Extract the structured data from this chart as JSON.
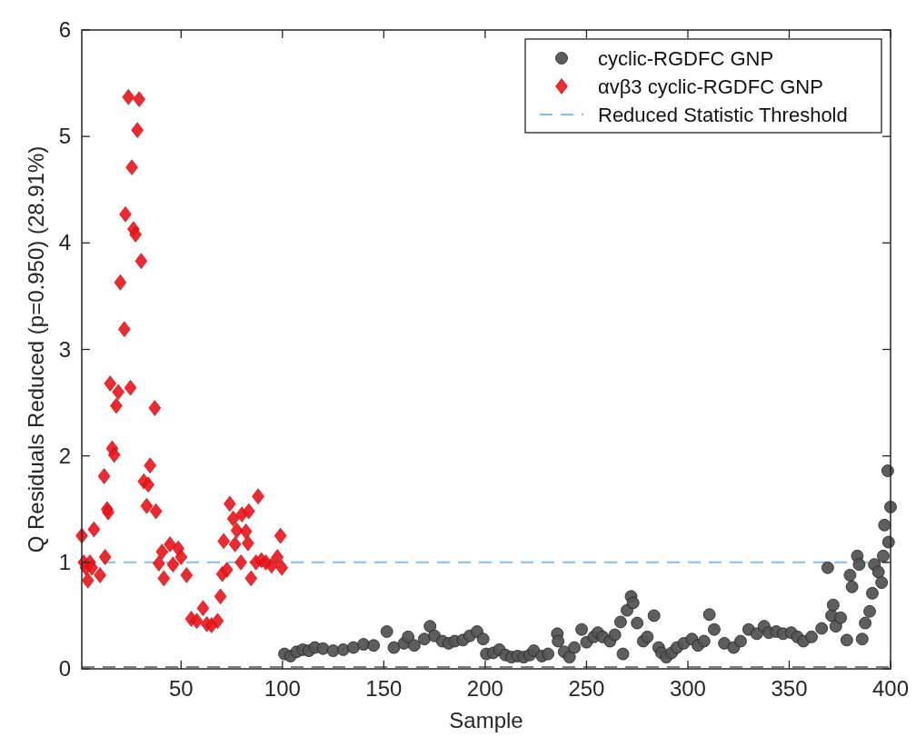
{
  "chart_data": {
    "type": "scatter",
    "xlabel": "Sample",
    "ylabel": "Q Residuals Reduced (p=0.950) (28.91%)",
    "xlim": [
      1,
      400
    ],
    "ylim": [
      0,
      6
    ],
    "xticks": [
      50,
      100,
      150,
      200,
      250,
      300,
      350,
      400
    ],
    "yticks": [
      0,
      1,
      2,
      3,
      4,
      5,
      6
    ],
    "grid": false,
    "legend": "top right",
    "series": [
      {
        "name": "cyclic-RGDFC GNP",
        "color": "#555555",
        "marker": "circle",
        "x": [
          101,
          104,
          107,
          110,
          113,
          116,
          120,
          125,
          130,
          135,
          140,
          145,
          151.5,
          155,
          160,
          162,
          165,
          170,
          172.8,
          175,
          178.9,
          182,
          185,
          189,
          192.4,
          196,
          199,
          200.6,
          204,
          207,
          210,
          213,
          216,
          219,
          222,
          224,
          228,
          231,
          235.6,
          236,
          239,
          241.6,
          244,
          247.6,
          250,
          253.6,
          255.6,
          258,
          261.6,
          264,
          266.8,
          268,
          270,
          272,
          273,
          275,
          278,
          280,
          283.3,
          285.6,
          287,
          289.4,
          292,
          294.6,
          298,
          302,
          305,
          308,
          310.6,
          313,
          318,
          322.6,
          326,
          330,
          334,
          337.6,
          340,
          343.6,
          347,
          351,
          354,
          357,
          361,
          366,
          369,
          370.9,
          371.7,
          373,
          375.4,
          378.4,
          380,
          381,
          383.6,
          384.5,
          386,
          387.5,
          389.7,
          391,
          392,
          394,
          395.6,
          396.4,
          397,
          398.6,
          399,
          400
        ],
        "values": [
          0.14,
          0.12,
          0.16,
          0.18,
          0.17,
          0.2,
          0.19,
          0.17,
          0.18,
          0.2,
          0.23,
          0.22,
          0.35,
          0.2,
          0.24,
          0.3,
          0.22,
          0.28,
          0.4,
          0.31,
          0.26,
          0.24,
          0.26,
          0.27,
          0.31,
          0.35,
          0.28,
          0.14,
          0.15,
          0.18,
          0.13,
          0.11,
          0.12,
          0.11,
          0.13,
          0.17,
          0.12,
          0.14,
          0.33,
          0.26,
          0.16,
          0.11,
          0.2,
          0.37,
          0.25,
          0.3,
          0.34,
          0.3,
          0.26,
          0.32,
          0.44,
          0.14,
          0.55,
          0.68,
          0.62,
          0.43,
          0.26,
          0.3,
          0.5,
          0.2,
          0.15,
          0.11,
          0.15,
          0.2,
          0.24,
          0.28,
          0.22,
          0.26,
          0.51,
          0.37,
          0.24,
          0.2,
          0.26,
          0.37,
          0.33,
          0.4,
          0.34,
          0.35,
          0.33,
          0.34,
          0.3,
          0.26,
          0.3,
          0.38,
          0.95,
          0.5,
          0.6,
          0.4,
          0.48,
          0.27,
          0.88,
          0.77,
          1.06,
          0.98,
          0.28,
          0.43,
          0.54,
          0.71,
          0.98,
          0.91,
          0.81,
          1.06,
          1.35,
          1.86,
          1.19,
          1.52
        ]
      },
      {
        "name": "αvβ3 cyclic-RGDFC GNP",
        "color": "#e8141c",
        "marker": "diamond",
        "x": [
          1,
          2,
          3,
          4,
          5,
          6,
          7,
          10,
          12,
          12.5,
          13.5,
          14,
          15,
          16,
          17,
          18,
          19,
          20,
          22,
          22.5,
          24,
          25,
          25.7,
          26.5,
          27.5,
          28.4,
          29.3,
          30.3,
          31.6,
          33,
          33.8,
          34.7,
          37,
          37.6,
          39,
          40.6,
          41.5,
          44.5,
          46,
          48.6,
          50,
          52.7,
          55,
          57.7,
          60.8,
          62.7,
          65,
          68,
          69.4,
          70.3,
          71,
          72.6,
          74,
          75.7,
          76.6,
          77.5,
          79.5,
          80,
          82,
          83,
          83.4,
          84.5,
          86.9,
          88,
          89.6,
          91.8,
          94.6,
          97.5,
          99,
          99.7
        ],
        "values": [
          1.25,
          1.0,
          0.95,
          0.83,
          1.0,
          0.95,
          1.31,
          0.88,
          1.81,
          1.05,
          1.5,
          1.47,
          2.68,
          2.07,
          2.01,
          2.47,
          2.6,
          3.63,
          3.19,
          4.27,
          5.37,
          2.64,
          4.71,
          4.13,
          4.08,
          5.06,
          5.35,
          3.83,
          1.76,
          1.53,
          1.73,
          1.91,
          2.45,
          1.48,
          0.99,
          1.1,
          0.85,
          1.17,
          0.98,
          1.13,
          1.05,
          0.88,
          0.47,
          0.45,
          0.57,
          0.42,
          0.41,
          0.45,
          0.68,
          0.89,
          1.2,
          0.93,
          1.55,
          1.41,
          1.17,
          1.3,
          1.0,
          1.45,
          1.29,
          1.18,
          1.48,
          0.85,
          1.0,
          1.62,
          1.02,
          1.0,
          0.97,
          1.05,
          1.25,
          0.95
        ]
      }
    ],
    "ref_lines": [
      {
        "axis": "y",
        "value": 1,
        "label": "Reduced Statistic Threshold",
        "color": "#80c0ea",
        "line_style": "dashed"
      },
      {
        "axis": "y",
        "value": 0,
        "color": "#7f7f7f",
        "line_style": "dashed"
      }
    ]
  }
}
